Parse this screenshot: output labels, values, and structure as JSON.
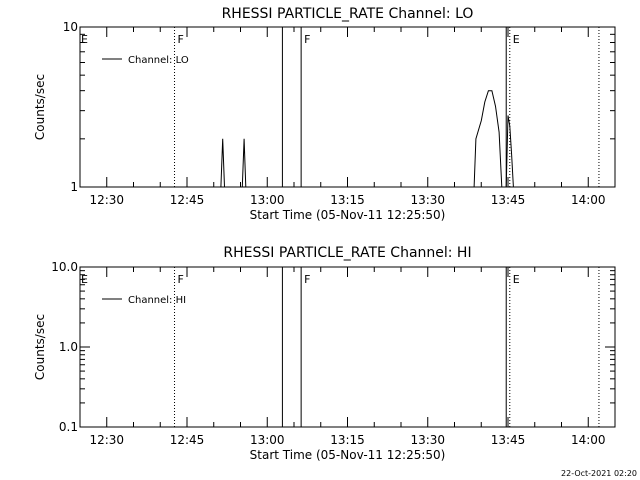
{
  "footer": {
    "timestamp": "22-Oct-2021 02:20"
  },
  "chart_data": [
    {
      "type": "line",
      "title": "RHESSI PARTICLE_RATE Channel: LO",
      "xlabel": "Start Time (05-Nov-11 12:25:50)",
      "ylabel": "Counts/sec",
      "xlim": [
        "12:25",
        "14:05"
      ],
      "ylim": [
        1,
        10
      ],
      "yscale": "log",
      "xticks": [
        "12:30",
        "12:45",
        "13:00",
        "13:15",
        "13:30",
        "13:45",
        "14:00"
      ],
      "yticks": [
        "1",
        "10"
      ],
      "legend": {
        "position": "top-left",
        "label": "Channel: LO"
      },
      "grid": false,
      "series": [
        {
          "name": "Channel: LO",
          "points": [
            [
              "12:51:20",
              1
            ],
            [
              "12:51:40",
              2
            ],
            [
              "12:52:00",
              1
            ],
            [
              "12:55:20",
              1
            ],
            [
              "12:55:40",
              2
            ],
            [
              "12:56:00",
              1
            ],
            [
              "13:38:40",
              1
            ],
            [
              "13:39:00",
              2
            ],
            [
              "13:40:00",
              2.6
            ],
            [
              "13:40:40",
              3.4
            ],
            [
              "13:41:20",
              4
            ],
            [
              "13:42:00",
              4
            ],
            [
              "13:42:40",
              3.2
            ],
            [
              "13:43:20",
              2.2
            ],
            [
              "13:43:50",
              1
            ],
            [
              "13:44:40",
              1
            ],
            [
              "13:45:00",
              2.8
            ],
            [
              "13:45:20",
              2.4
            ],
            [
              "13:45:40",
              1.6
            ],
            [
              "13:46:00",
              1
            ]
          ]
        }
      ],
      "vertical_lines": [
        {
          "time": "12:42:40",
          "style": "dotted",
          "flag": "F"
        },
        {
          "time": "13:02:50",
          "style": "solid"
        },
        {
          "time": "13:06:20",
          "style": "solid",
          "flag": "F"
        },
        {
          "time": "13:44:40",
          "style": "solid"
        },
        {
          "time": "13:45:20",
          "style": "dotted",
          "flag": "E"
        },
        {
          "time": "14:02:00",
          "style": "dotted"
        }
      ],
      "corner_flag": "E"
    },
    {
      "type": "line",
      "title": "RHESSI PARTICLE_RATE Channel: HI",
      "xlabel": "Start Time (05-Nov-11 12:25:50)",
      "ylabel": "Counts/sec",
      "xlim": [
        "12:25",
        "14:05"
      ],
      "ylim": [
        0.1,
        10
      ],
      "yscale": "log",
      "xticks": [
        "12:30",
        "12:45",
        "13:00",
        "13:15",
        "13:30",
        "13:45",
        "14:00"
      ],
      "yticks": [
        "0.1",
        "1.0",
        "10.0"
      ],
      "legend": {
        "position": "top-left",
        "label": "Channel: HI"
      },
      "grid": false,
      "series": [
        {
          "name": "Channel: HI",
          "points": []
        }
      ],
      "vertical_lines": [
        {
          "time": "12:42:40",
          "style": "dotted",
          "flag": "F"
        },
        {
          "time": "13:02:50",
          "style": "solid"
        },
        {
          "time": "13:06:20",
          "style": "solid",
          "flag": "F"
        },
        {
          "time": "13:44:40",
          "style": "solid"
        },
        {
          "time": "13:45:20",
          "style": "dotted",
          "flag": "E"
        },
        {
          "time": "14:02:00",
          "style": "dotted"
        }
      ],
      "corner_flag": "E"
    }
  ]
}
